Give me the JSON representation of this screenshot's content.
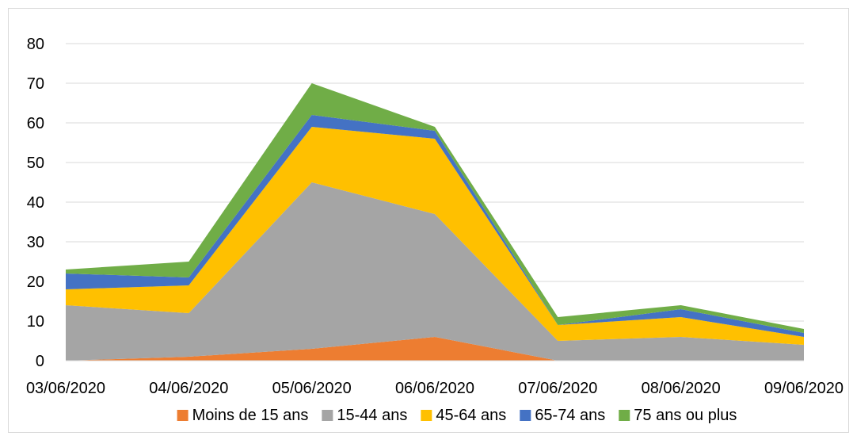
{
  "chart_data": {
    "type": "area",
    "stacked": true,
    "categories": [
      "03/06/2020",
      "04/06/2020",
      "05/06/2020",
      "06/06/2020",
      "07/06/2020",
      "08/06/2020",
      "09/06/2020"
    ],
    "series": [
      {
        "name": "Moins de 15 ans",
        "color": "#ED7D31",
        "values": [
          0,
          1,
          3,
          6,
          0,
          0,
          0
        ]
      },
      {
        "name": "15-44 ans",
        "color": "#A5A5A5",
        "values": [
          14,
          11,
          42,
          31,
          5,
          6,
          4
        ]
      },
      {
        "name": "45-64 ans",
        "color": "#FFC000",
        "values": [
          4,
          7,
          14,
          19,
          4,
          5,
          2
        ]
      },
      {
        "name": "65-74 ans",
        "color": "#4472C4",
        "values": [
          4,
          2,
          3,
          2,
          0,
          2,
          1
        ]
      },
      {
        "name": "75 ans ou plus",
        "color": "#70AD47",
        "values": [
          1,
          4,
          8,
          1,
          2,
          1,
          1
        ]
      }
    ],
    "y_ticks": [
      0,
      10,
      20,
      30,
      40,
      50,
      60,
      70,
      80
    ],
    "ylim": [
      0,
      80
    ],
    "grid": true,
    "legend_position": "bottom"
  }
}
